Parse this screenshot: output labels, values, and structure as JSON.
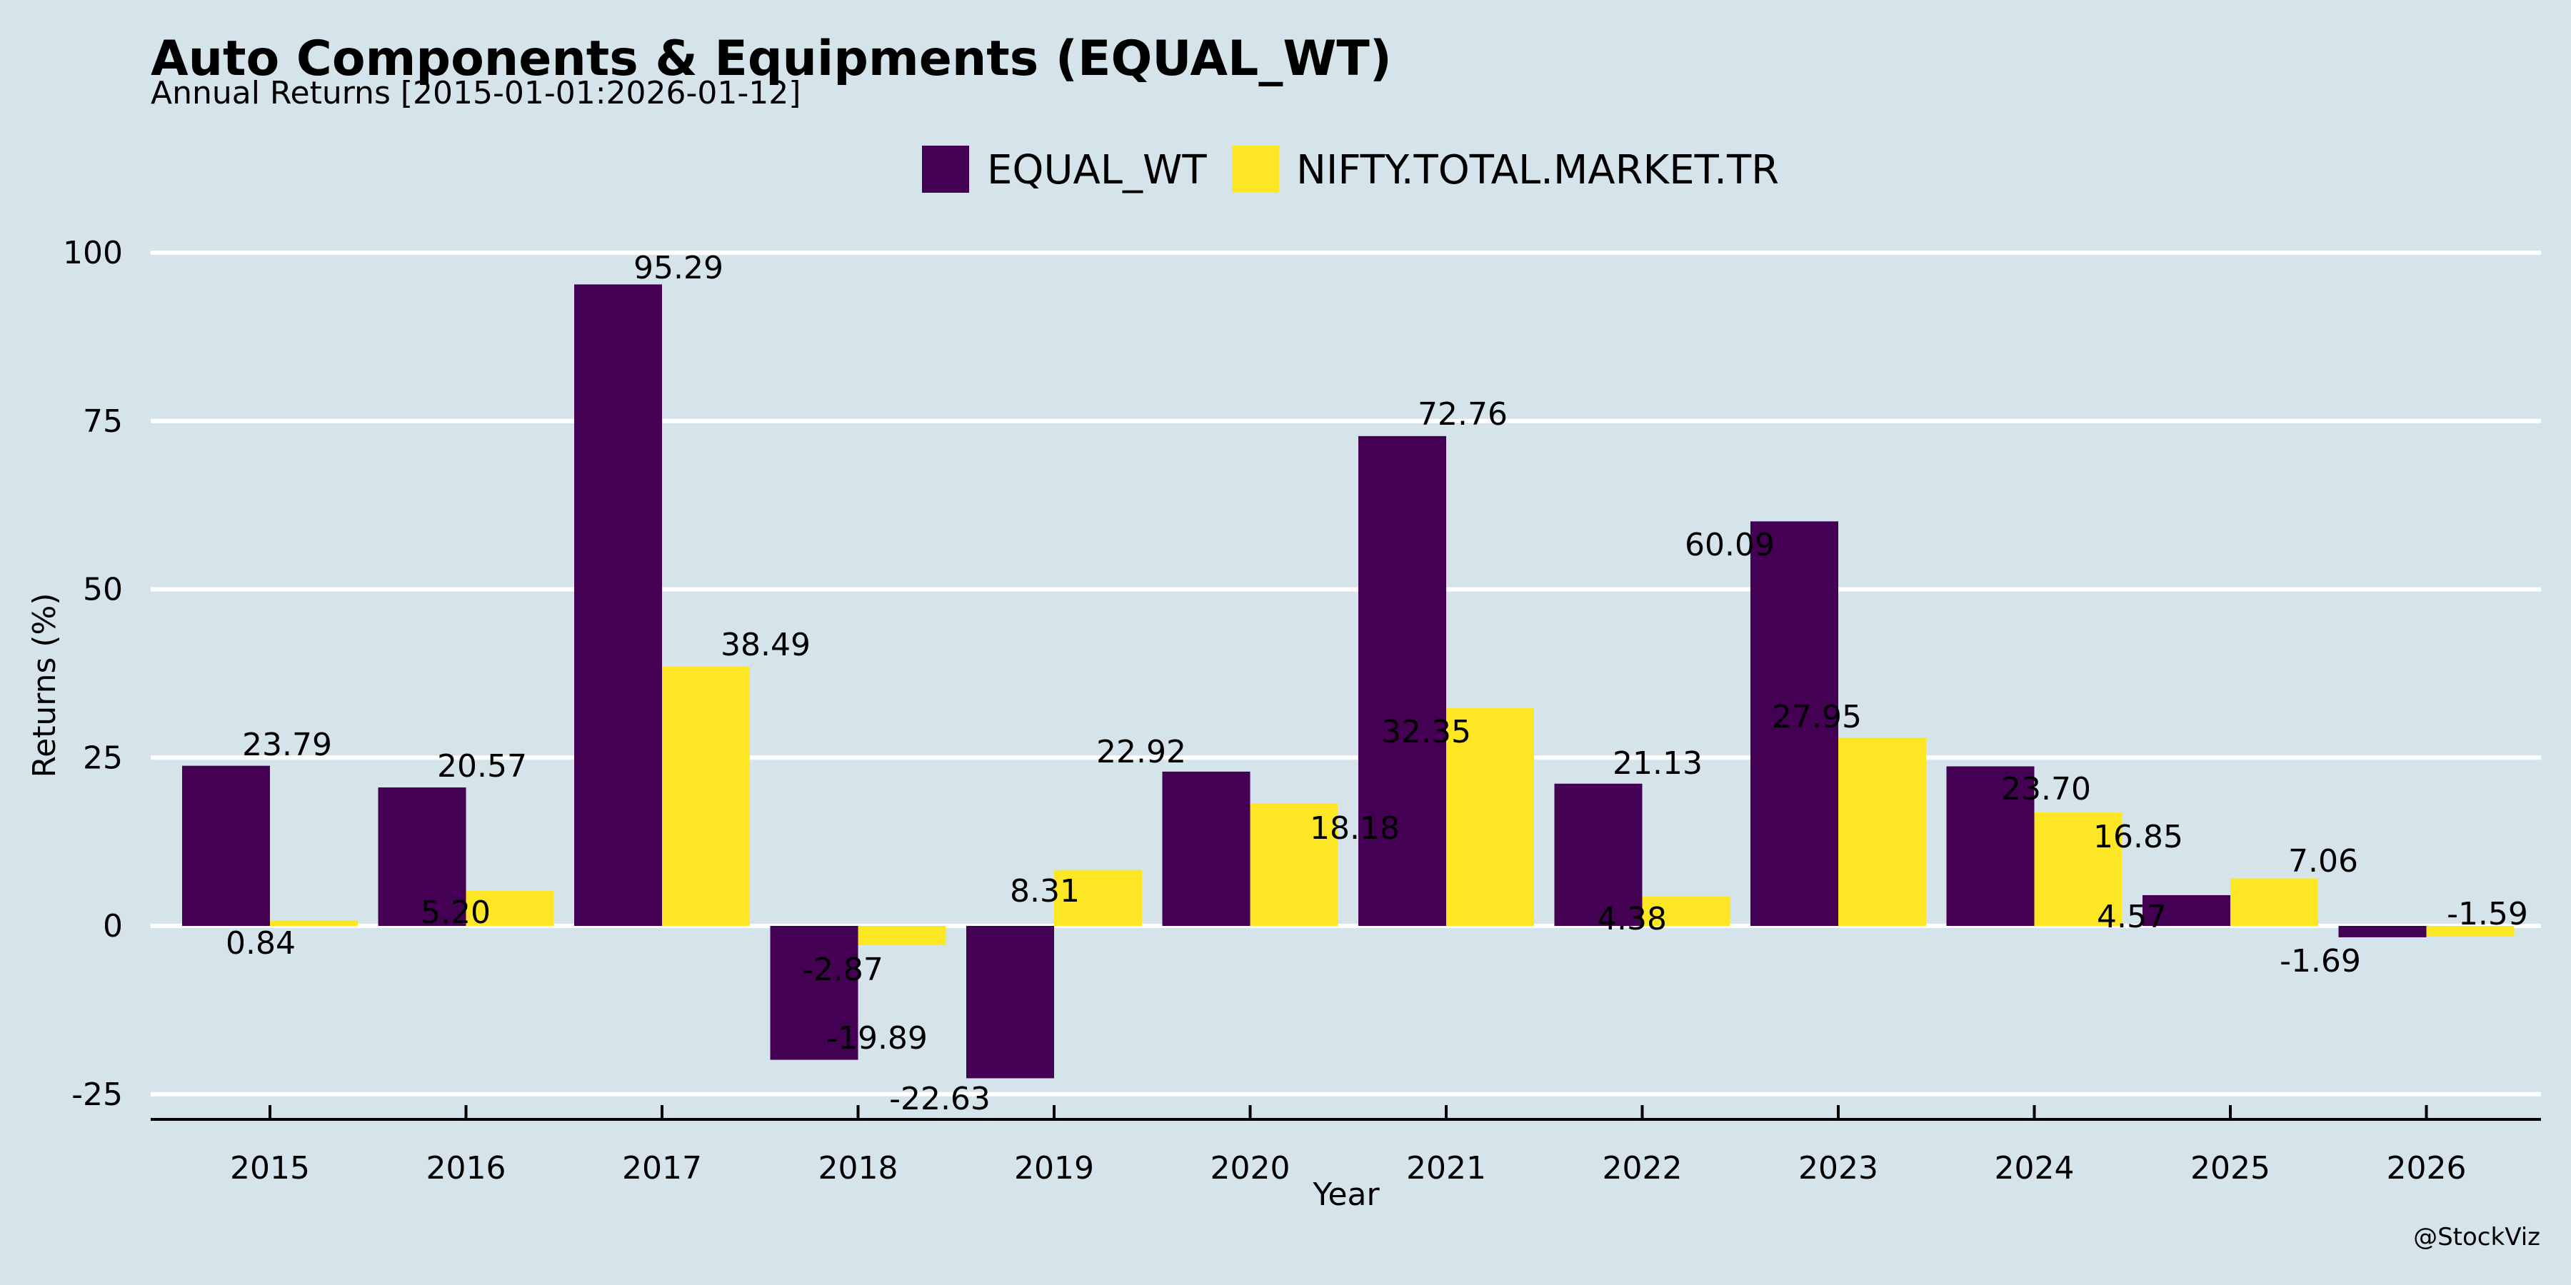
{
  "chart_data": {
    "type": "bar",
    "title": "Auto Components & Equipments (EQUAL_WT)",
    "subtitle": "Annual Returns [2015-01-01:2026-01-12]",
    "xlabel": "Year",
    "ylabel": "Returns (%)",
    "categories": [
      "2015",
      "2016",
      "2017",
      "2018",
      "2019",
      "2020",
      "2021",
      "2022",
      "2023",
      "2024",
      "2025",
      "2026"
    ],
    "series": [
      {
        "name": "EQUAL_WT",
        "color": "#440154",
        "values": [
          23.79,
          20.57,
          95.29,
          -19.89,
          -22.63,
          22.92,
          72.76,
          21.13,
          60.09,
          23.7,
          4.57,
          -1.69
        ],
        "labels": [
          "23.79",
          "20.57",
          "95.29",
          "-19.89",
          "-22.63",
          "22.92",
          "72.76",
          "21.13",
          "60.09",
          "23.70",
          "4.57",
          "-1.69"
        ]
      },
      {
        "name": "NIFTY.TOTAL.MARKET.TR",
        "color": "#fde725",
        "values": [
          0.84,
          5.2,
          38.49,
          -2.87,
          8.31,
          18.18,
          32.35,
          4.38,
          27.95,
          16.85,
          7.06,
          -1.59
        ],
        "labels": [
          "0.84",
          "5.20",
          "38.49",
          "-2.87",
          "8.31",
          "18.18",
          "32.35",
          "4.38",
          "27.95",
          "16.85",
          "7.06",
          "-1.59"
        ]
      }
    ],
    "yticks": [
      -25,
      0,
      25,
      50,
      75,
      100
    ],
    "ytick_labels": [
      "-25",
      "0",
      "25",
      "50",
      "75",
      "100"
    ],
    "ylim": [
      -28.5,
      104
    ],
    "grid": true,
    "legend": "top-center",
    "watermark": "@StockViz",
    "background": "#d5e4eb"
  }
}
